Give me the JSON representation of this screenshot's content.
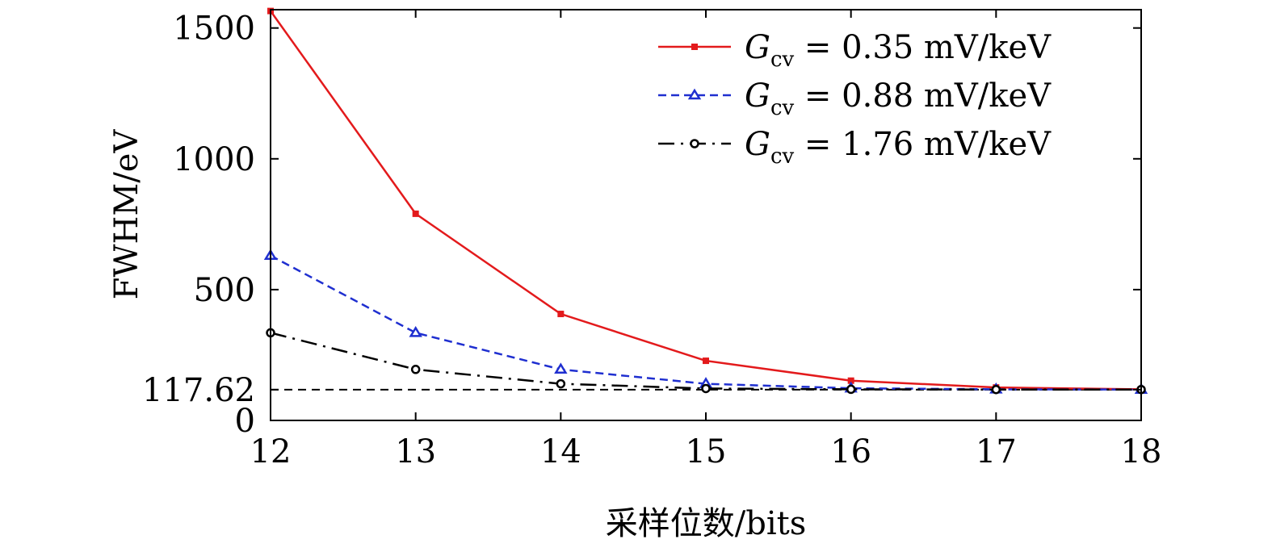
{
  "chart_data": {
    "type": "line",
    "x": [
      12,
      13,
      14,
      15,
      16,
      17,
      18
    ],
    "xlabel": "采样位数/bits",
    "ylabel": "FWHM/eV",
    "xlim": [
      12,
      18
    ],
    "ylim": [
      0,
      1570
    ],
    "xticks": [
      "12",
      "13",
      "14",
      "15",
      "16",
      "17",
      "18"
    ],
    "yticks": [
      {
        "value": 0,
        "label": "0"
      },
      {
        "value": 117.62,
        "label": "117.62"
      },
      {
        "value": 500,
        "label": "500"
      },
      {
        "value": 1000,
        "label": "1000"
      },
      {
        "value": 1500,
        "label": "1500"
      }
    ],
    "reference_line": {
      "value": 117.62,
      "style": "dashed",
      "color": "#000000"
    },
    "legend_position": "top-right",
    "series": [
      {
        "name": "G_cv = 0.35 mV/keV",
        "symbol": "G",
        "subscript": "cv",
        "equals": "=",
        "value_text": "0.35 mV/keV",
        "color": "#e31a1c",
        "marker": "square",
        "line_style": "solid",
        "values": [
          1565,
          790,
          407,
          228,
          152,
          126,
          119
        ]
      },
      {
        "name": "G_cv = 0.88 mV/keV",
        "symbol": "G",
        "subscript": "cv",
        "equals": "=",
        "value_text": "0.88 mV/keV",
        "color": "#1f2fd0",
        "marker": "triangle",
        "line_style": "dashed",
        "values": [
          630,
          335,
          195,
          140,
          123,
          119,
          118
        ]
      },
      {
        "name": "G_cv = 1.76 mV/keV",
        "symbol": "G",
        "subscript": "cv",
        "equals": "=",
        "value_text": "1.76 mV/keV",
        "color": "#000000",
        "marker": "circle",
        "line_style": "dashdot",
        "values": [
          335,
          195,
          140,
          122,
          119,
          118,
          118
        ]
      }
    ]
  }
}
